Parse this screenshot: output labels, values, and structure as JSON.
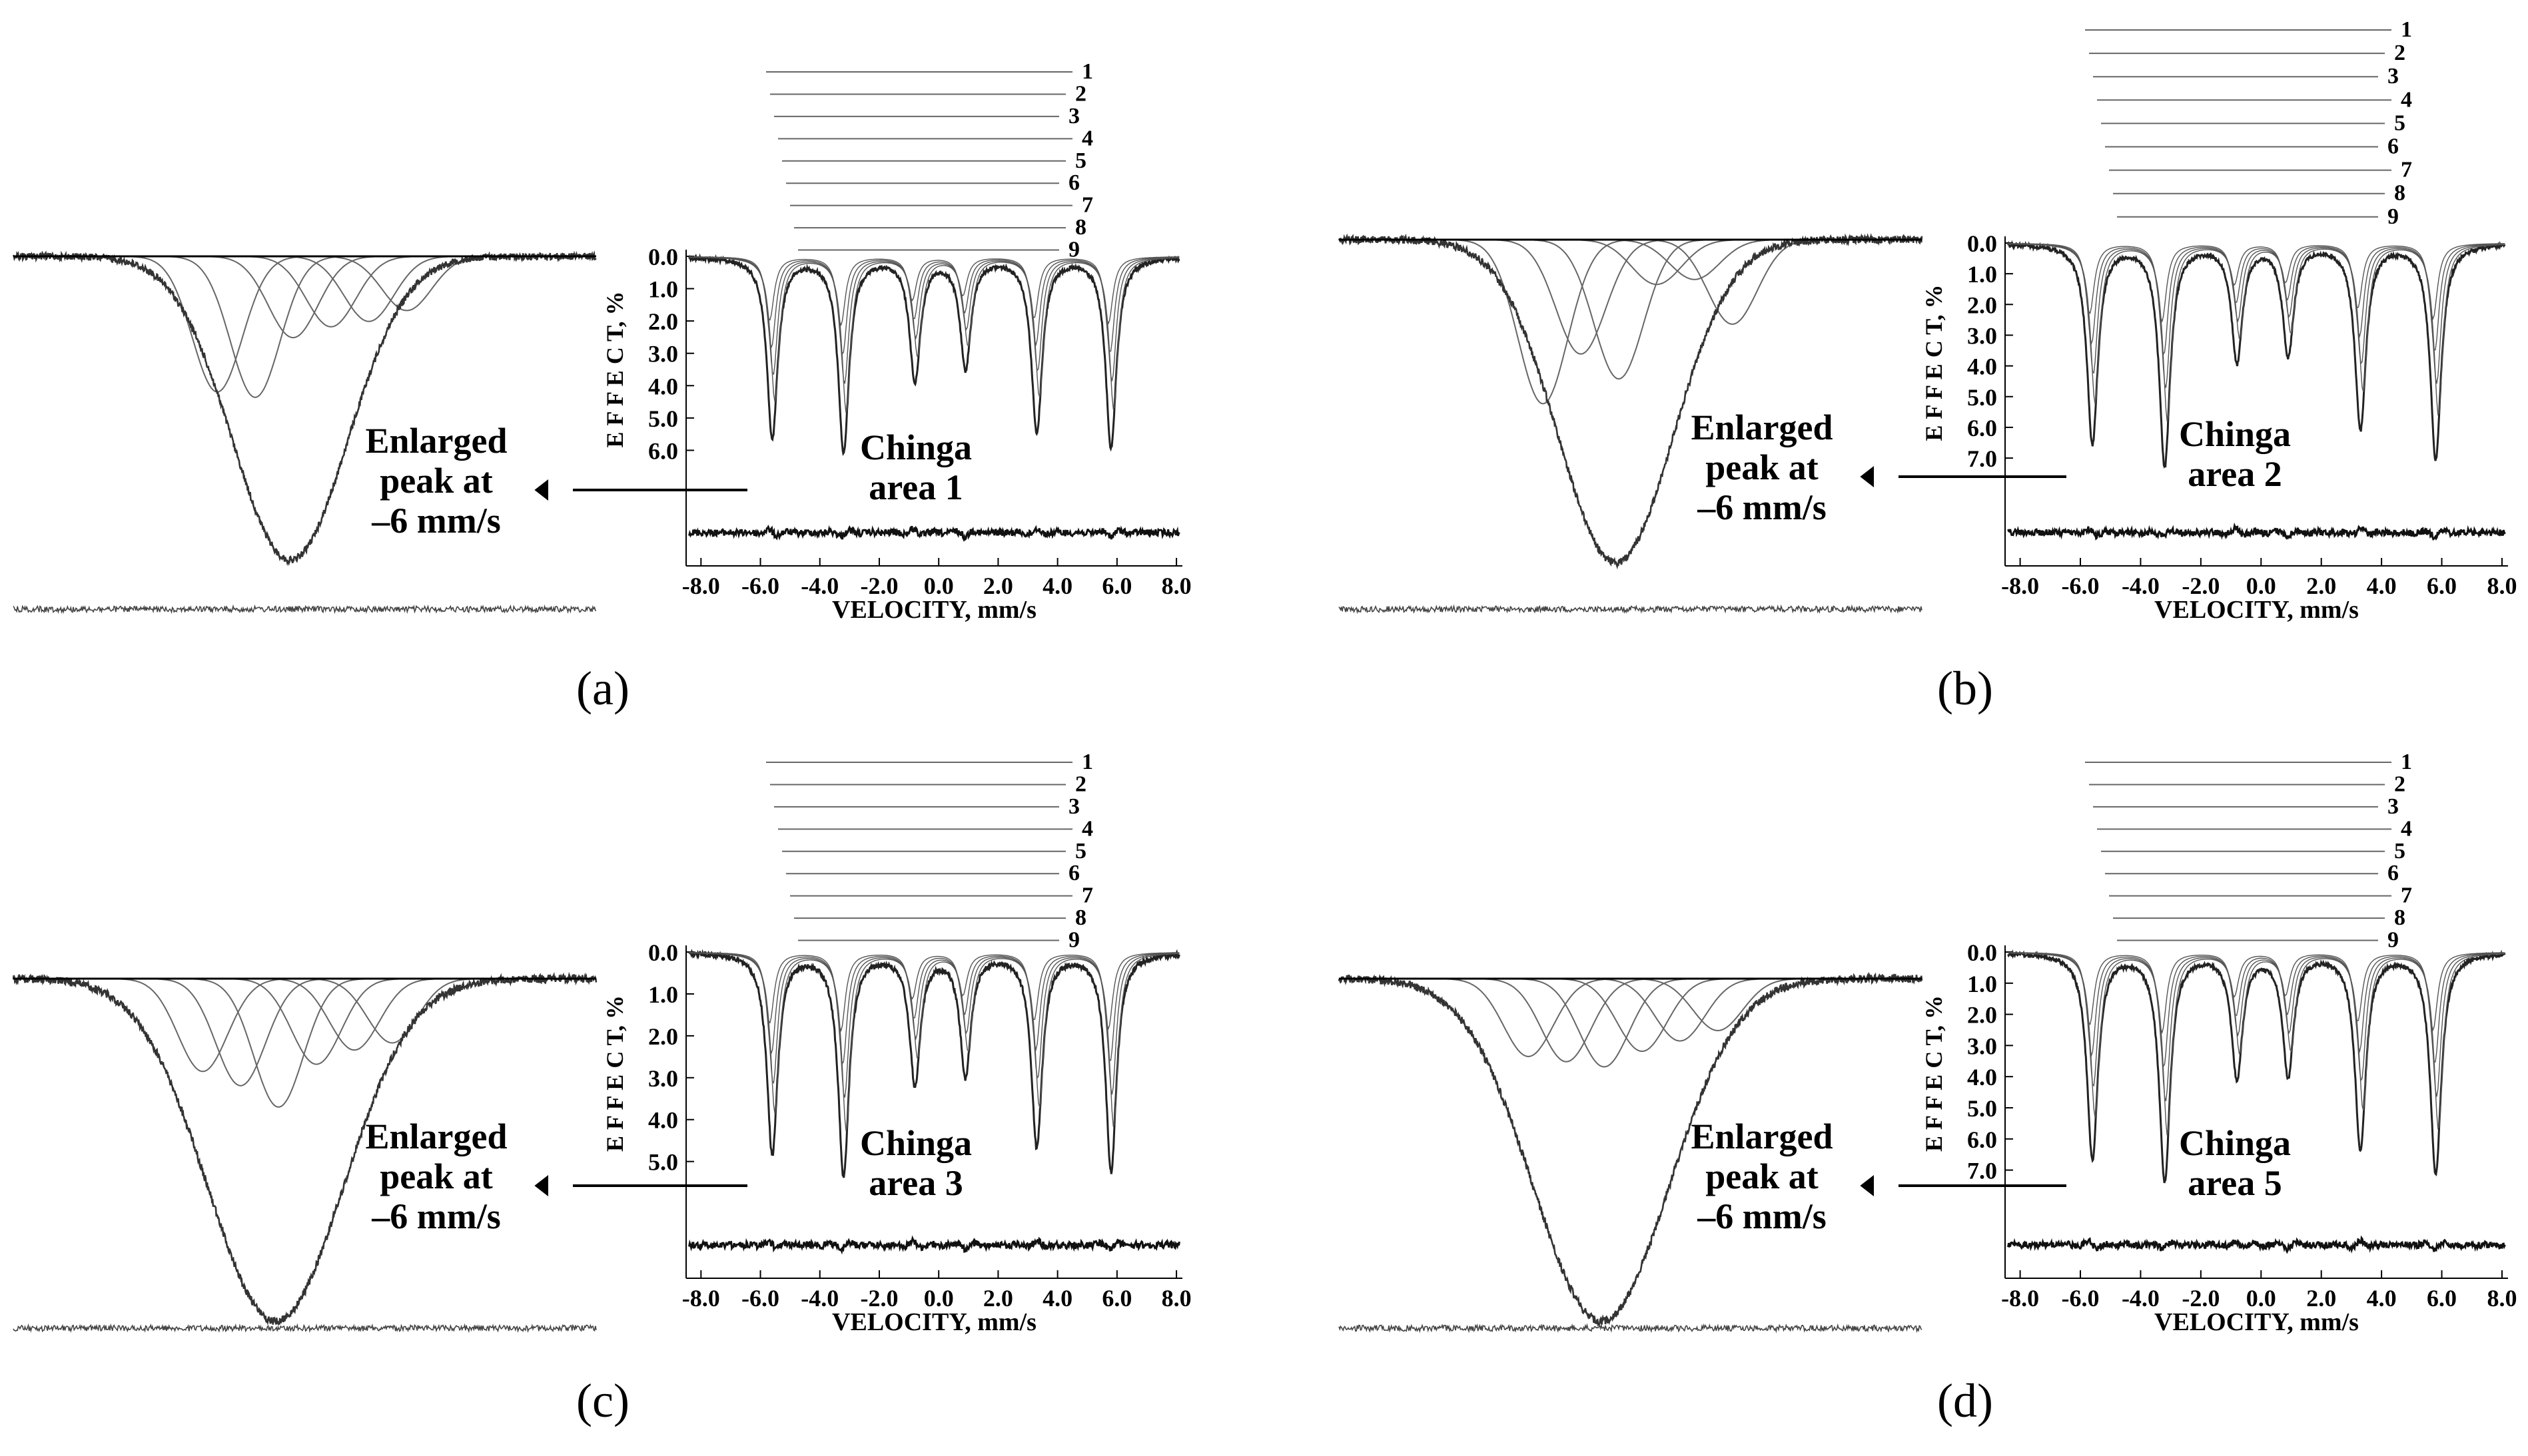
{
  "figure": {
    "panels": [
      {
        "label": "(a)",
        "site_line1": "Chinga",
        "site_line2": "area 1",
        "enlarged_line1": "Enlarged",
        "enlarged_line2": "peak at",
        "enlarged_line3": "–6 mm/s",
        "ylabel": "E F F E C T, %",
        "xlabel": "VELOCITY,  mm/s",
        "yticks": [
          "0.0",
          "1.0",
          "2.0",
          "3.0",
          "4.0",
          "5.0",
          "6.0"
        ],
        "xticks": [
          "-8.0",
          "-6.0",
          "-4.0",
          "-2.0",
          "0.0",
          "2.0",
          "4.0",
          "6.0",
          "8.0"
        ],
        "subspectra_labels": [
          "1",
          "2",
          "3",
          "4",
          "5",
          "6",
          "7",
          "8",
          "9"
        ]
      },
      {
        "label": "(b)",
        "site_line1": "Chinga",
        "site_line2": "area 2",
        "enlarged_line1": "Enlarged",
        "enlarged_line2": "peak at",
        "enlarged_line3": "–6 mm/s",
        "ylabel": "E F F E C T, %",
        "xlabel": "VELOCITY,  mm/s",
        "yticks": [
          "0.0",
          "1.0",
          "2.0",
          "3.0",
          "4.0",
          "5.0",
          "6.0",
          "7.0"
        ],
        "xticks": [
          "-8.0",
          "-6.0",
          "-4.0",
          "-2.0",
          "0.0",
          "2.0",
          "4.0",
          "6.0",
          "8.0"
        ],
        "subspectra_labels": [
          "1",
          "2",
          "3",
          "4",
          "5",
          "6",
          "7",
          "8",
          "9"
        ]
      },
      {
        "label": "(c)",
        "site_line1": "Chinga",
        "site_line2": "area 3",
        "enlarged_line1": "Enlarged",
        "enlarged_line2": "peak at",
        "enlarged_line3": "–6 mm/s",
        "ylabel": "E F F E C T, %",
        "xlabel": "VELOCITY,  mm/s",
        "yticks": [
          "0.0",
          "1.0",
          "2.0",
          "3.0",
          "4.0",
          "5.0"
        ],
        "xticks": [
          "-8.0",
          "-6.0",
          "-4.0",
          "-2.0",
          "0.0",
          "2.0",
          "4.0",
          "6.0",
          "8.0"
        ],
        "subspectra_labels": [
          "1",
          "2",
          "3",
          "4",
          "5",
          "6",
          "7",
          "8",
          "9"
        ]
      },
      {
        "label": "(d)",
        "site_line1": "Chinga",
        "site_line2": "area 5",
        "enlarged_line1": "Enlarged",
        "enlarged_line2": "peak at",
        "enlarged_line3": "–6 mm/s",
        "ylabel": "E F F E C T, %",
        "xlabel": "VELOCITY,  mm/s",
        "yticks": [
          "0.0",
          "1.0",
          "2.0",
          "3.0",
          "4.0",
          "5.0",
          "6.0",
          "7.0"
        ],
        "xticks": [
          "-8.0",
          "-6.0",
          "-4.0",
          "-2.0",
          "0.0",
          "2.0",
          "4.0",
          "6.0",
          "8.0"
        ],
        "subspectra_labels": [
          "1",
          "2",
          "3",
          "4",
          "5",
          "6",
          "7",
          "8",
          "9"
        ]
      }
    ]
  },
  "chart_data": [
    {
      "type": "line",
      "title": "",
      "xlabel": "VELOCITY,  mm/s",
      "ylabel": "E F F E C T, %",
      "xlim": [
        -8.5,
        8.2
      ],
      "ylim": [
        0,
        7.0
      ],
      "y_inverted": true,
      "grid": false,
      "sample": "Chinga area 1",
      "peak_positions": [
        -5.6,
        -3.2,
        -0.8,
        0.9,
        3.3,
        5.8
      ],
      "peak_depths": [
        5.6,
        6.0,
        3.8,
        3.4,
        5.4,
        5.9
      ],
      "enlarged_peak": {
        "center": -5.6,
        "depth_max": 5.6,
        "component_depths": [
          2.5,
          2.6,
          1.5,
          1.3,
          1.2,
          1.0
        ]
      }
    },
    {
      "type": "line",
      "title": "",
      "xlabel": "VELOCITY,  mm/s",
      "ylabel": "E F F E C T, %",
      "xlim": [
        -8.5,
        8.2
      ],
      "ylim": [
        0,
        7.8
      ],
      "y_inverted": true,
      "grid": false,
      "sample": "Chinga area 2",
      "peak_positions": [
        -5.6,
        -3.2,
        -0.8,
        0.9,
        3.3,
        5.8
      ],
      "peak_depths": [
        6.5,
        7.2,
        3.8,
        3.6,
        6.0,
        7.0
      ],
      "enlarged_peak": {
        "center": -5.6,
        "depth_max": 6.5,
        "component_depths": [
          3.3,
          2.3,
          2.8,
          0.9,
          0.8,
          1.7
        ]
      }
    },
    {
      "type": "line",
      "title": "",
      "xlabel": "VELOCITY,  mm/s",
      "ylabel": "E F F E C T, %",
      "xlim": [
        -8.5,
        8.2
      ],
      "ylim": [
        0,
        5.8
      ],
      "y_inverted": true,
      "grid": false,
      "sample": "Chinga area 3",
      "peak_positions": [
        -5.6,
        -3.2,
        -0.8,
        0.9,
        3.3,
        5.8
      ],
      "peak_depths": [
        4.8,
        5.3,
        3.1,
        2.9,
        4.6,
        5.2
      ],
      "enlarged_peak": {
        "center": -5.6,
        "depth_max": 4.8,
        "component_depths": [
          1.3,
          1.5,
          1.8,
          1.2,
          1.0,
          0.9
        ]
      }
    },
    {
      "type": "line",
      "title": "",
      "xlabel": "VELOCITY,  mm/s",
      "ylabel": "E F F E C T, %",
      "xlim": [
        -8.5,
        8.2
      ],
      "ylim": [
        0,
        7.8
      ],
      "y_inverted": true,
      "grid": false,
      "sample": "Chinga area 5",
      "peak_positions": [
        -5.6,
        -3.2,
        -0.8,
        0.9,
        3.3,
        5.8
      ],
      "peak_depths": [
        6.6,
        7.3,
        4.0,
        3.9,
        6.3,
        7.1
      ],
      "enlarged_peak": {
        "center": -5.6,
        "depth_max": 6.6,
        "component_depths": [
          1.5,
          1.6,
          1.7,
          1.4,
          1.2,
          1.0
        ]
      }
    }
  ]
}
